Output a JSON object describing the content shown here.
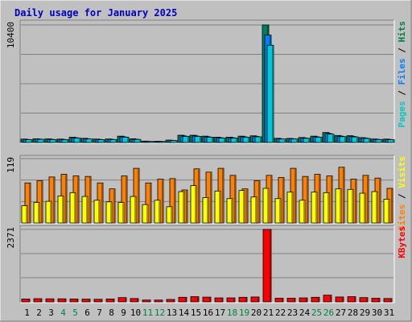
{
  "title": "Daily usage for January 2025",
  "chart_data": [
    {
      "type": "bar",
      "panel": "hits-files-pages",
      "ymax_label": "10400",
      "ylim": [
        0,
        10400
      ],
      "grid": true,
      "categories": [
        "1",
        "2",
        "3",
        "4",
        "5",
        "6",
        "7",
        "8",
        "9",
        "10",
        "11",
        "12",
        "13",
        "14",
        "15",
        "16",
        "17",
        "18",
        "19",
        "20",
        "21",
        "22",
        "23",
        "24",
        "25",
        "26",
        "27",
        "28",
        "29",
        "30",
        "31"
      ],
      "weekend_days": [
        "4",
        "5",
        "11",
        "12",
        "18",
        "19",
        "25",
        "26"
      ],
      "right_label": [
        {
          "text": "Pages",
          "color": "#00c8c8"
        },
        {
          "text": " / ",
          "color": "#000000"
        },
        {
          "text": "Files",
          "color": "#0080ff"
        },
        {
          "text": " / ",
          "color": "#000000"
        },
        {
          "text": "Hits",
          "color": "#008040"
        }
      ],
      "series": [
        {
          "name": "Hits",
          "color": "#008060",
          "values": [
            300,
            330,
            320,
            300,
            470,
            370,
            300,
            310,
            560,
            330,
            120,
            110,
            210,
            640,
            640,
            560,
            470,
            470,
            560,
            590,
            10400,
            370,
            360,
            440,
            560,
            880,
            620,
            600,
            430,
            310,
            300
          ]
        },
        {
          "name": "Files",
          "color": "#0080ff",
          "values": [
            270,
            300,
            280,
            270,
            420,
            330,
            270,
            280,
            500,
            290,
            100,
            100,
            190,
            580,
            580,
            500,
            420,
            420,
            500,
            530,
            9500,
            330,
            330,
            400,
            500,
            800,
            560,
            540,
            390,
            280,
            270
          ]
        },
        {
          "name": "Pages",
          "color": "#00c8d8",
          "values": [
            250,
            280,
            260,
            250,
            390,
            310,
            250,
            260,
            470,
            270,
            90,
            90,
            170,
            540,
            540,
            470,
            390,
            390,
            470,
            500,
            8600,
            310,
            310,
            370,
            470,
            740,
            520,
            500,
            360,
            260,
            250
          ]
        }
      ]
    },
    {
      "type": "bar",
      "panel": "visits-sites",
      "ymax_label": "119",
      "ylim": [
        0,
        119
      ],
      "grid": true,
      "categories": [
        "1",
        "2",
        "3",
        "4",
        "5",
        "6",
        "7",
        "8",
        "9",
        "10",
        "11",
        "12",
        "13",
        "14",
        "15",
        "16",
        "17",
        "18",
        "19",
        "20",
        "21",
        "22",
        "23",
        "24",
        "25",
        "26",
        "27",
        "28",
        "29",
        "30",
        "31"
      ],
      "right_label": [
        {
          "text": "Sites",
          "color": "#ff8000"
        },
        {
          "text": " / ",
          "color": "#000000"
        },
        {
          "text": "Visits",
          "color": "#ffff00"
        }
      ],
      "series": [
        {
          "name": "Visits",
          "color": "#ff8000",
          "values": [
            74,
            78,
            85,
            90,
            87,
            86,
            74,
            63,
            87,
            101,
            74,
            81,
            82,
            61,
            100,
            94,
            101,
            88,
            63,
            78,
            88,
            84,
            101,
            86,
            90,
            87,
            103,
            81,
            88,
            83,
            64
          ]
        },
        {
          "name": "Sites",
          "color": "#ffff00",
          "values": [
            32,
            38,
            40,
            50,
            56,
            49,
            42,
            39,
            38,
            49,
            34,
            42,
            30,
            58,
            69,
            47,
            59,
            45,
            60,
            48,
            64,
            45,
            57,
            42,
            57,
            56,
            63,
            62,
            55,
            58,
            44
          ]
        }
      ]
    },
    {
      "type": "bar",
      "panel": "kbytes",
      "ymax_label": "2371",
      "ylim": [
        0,
        2371
      ],
      "grid": true,
      "categories": [
        "1",
        "2",
        "3",
        "4",
        "5",
        "6",
        "7",
        "8",
        "9",
        "10",
        "11",
        "12",
        "13",
        "14",
        "15",
        "16",
        "17",
        "18",
        "19",
        "20",
        "21",
        "22",
        "23",
        "24",
        "25",
        "26",
        "27",
        "28",
        "29",
        "30",
        "31"
      ],
      "right_label": [
        {
          "text": "KBytes",
          "color": "#ff0000"
        }
      ],
      "series": [
        {
          "name": "KBytes",
          "color": "#ff0000",
          "values": [
            95,
            105,
            100,
            100,
            95,
            90,
            85,
            95,
            140,
            110,
            60,
            60,
            80,
            150,
            170,
            155,
            130,
            130,
            150,
            160,
            2371,
            120,
            120,
            130,
            150,
            220,
            160,
            170,
            140,
            120,
            110
          ]
        }
      ]
    }
  ]
}
